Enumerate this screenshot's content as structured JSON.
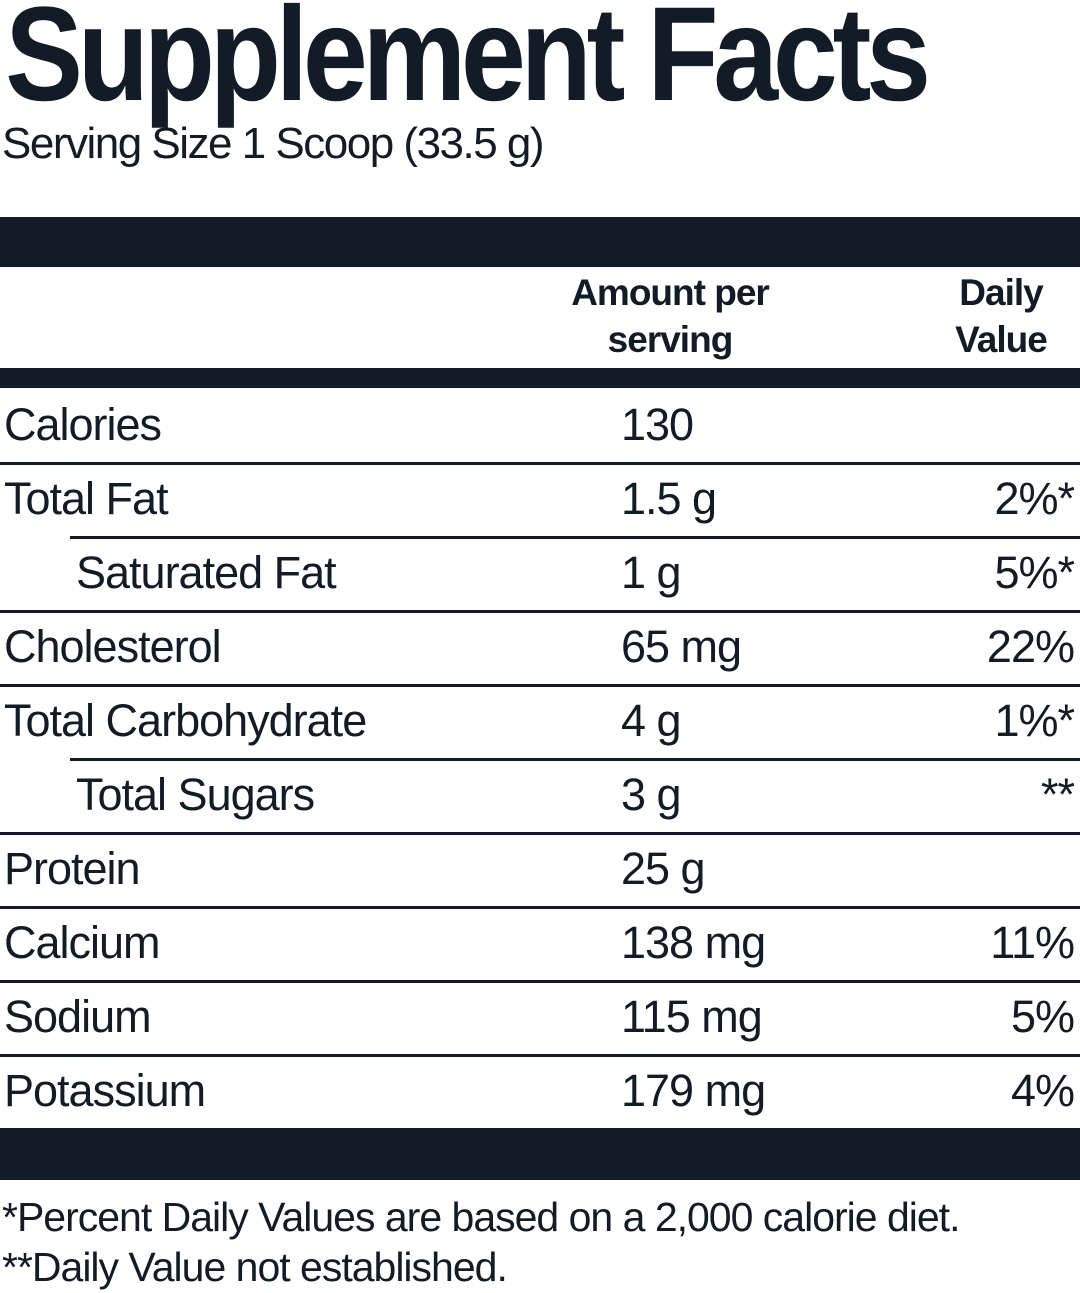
{
  "title": "Supplement Facts",
  "serving_size": "Serving Size 1 Scoop (33.5 g)",
  "columns": {
    "amount_header": "Amount per\nserving",
    "daily_value_header": "% Daily\nValue"
  },
  "rows": [
    {
      "label": "Calories",
      "amount": "130",
      "daily_value": ""
    },
    {
      "label": "Total Fat",
      "amount": "1.5 g",
      "daily_value": "2%*"
    },
    {
      "label": "Saturated Fat",
      "amount": "1 g",
      "daily_value": "5%*"
    },
    {
      "label": "Cholesterol",
      "amount": "65 mg",
      "daily_value": "22%"
    },
    {
      "label": "Total Carbohydrate",
      "amount": "4 g",
      "daily_value": "1%*"
    },
    {
      "label": "Total Sugars",
      "amount": "3 g",
      "daily_value": "**"
    },
    {
      "label": "Protein",
      "amount": "25 g",
      "daily_value": ""
    },
    {
      "label": "Calcium",
      "amount": "138 mg",
      "daily_value": "11%"
    },
    {
      "label": "Sodium",
      "amount": "115 mg",
      "daily_value": "5%"
    },
    {
      "label": "Potassium",
      "amount": "179 mg",
      "daily_value": "4%"
    }
  ],
  "footnotes": [
    "*Percent Daily Values are based on a 2,000 calorie diet.",
    "**Daily Value not established."
  ],
  "colors": {
    "ink": "#121c26",
    "background": "#ffffff"
  }
}
